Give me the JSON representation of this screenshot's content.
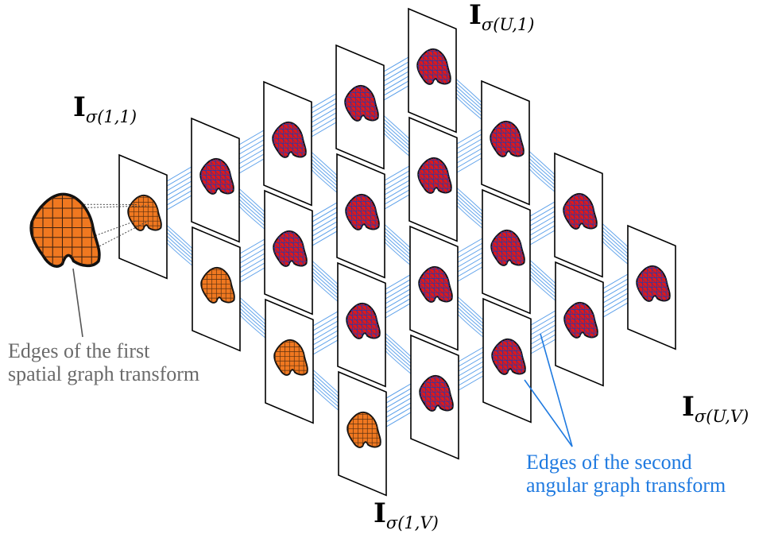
{
  "labels": {
    "top_left": {
      "base": "I",
      "sub": "σ(1,1)"
    },
    "top_right": {
      "base": "I",
      "sub": "σ(U,1)"
    },
    "bottom_left": {
      "base": "I",
      "sub": "σ(1,V)"
    },
    "bottom_right": {
      "base": "I",
      "sub": "σ(U,V)"
    }
  },
  "captions": {
    "spatial": [
      "Edges of the first",
      "spatial graph transform"
    ],
    "angular": [
      "Edges of the second",
      "angular graph transform"
    ]
  },
  "colors": {
    "frame": "#000000",
    "edge_blue": "#3d8ee6",
    "caption_blue": "#1f7ae0",
    "caption_gray": "#6a6a6a",
    "shape_orange": "#f07820",
    "shape_red": "#e01818",
    "mesh_blue": "#2a3aa8"
  }
}
